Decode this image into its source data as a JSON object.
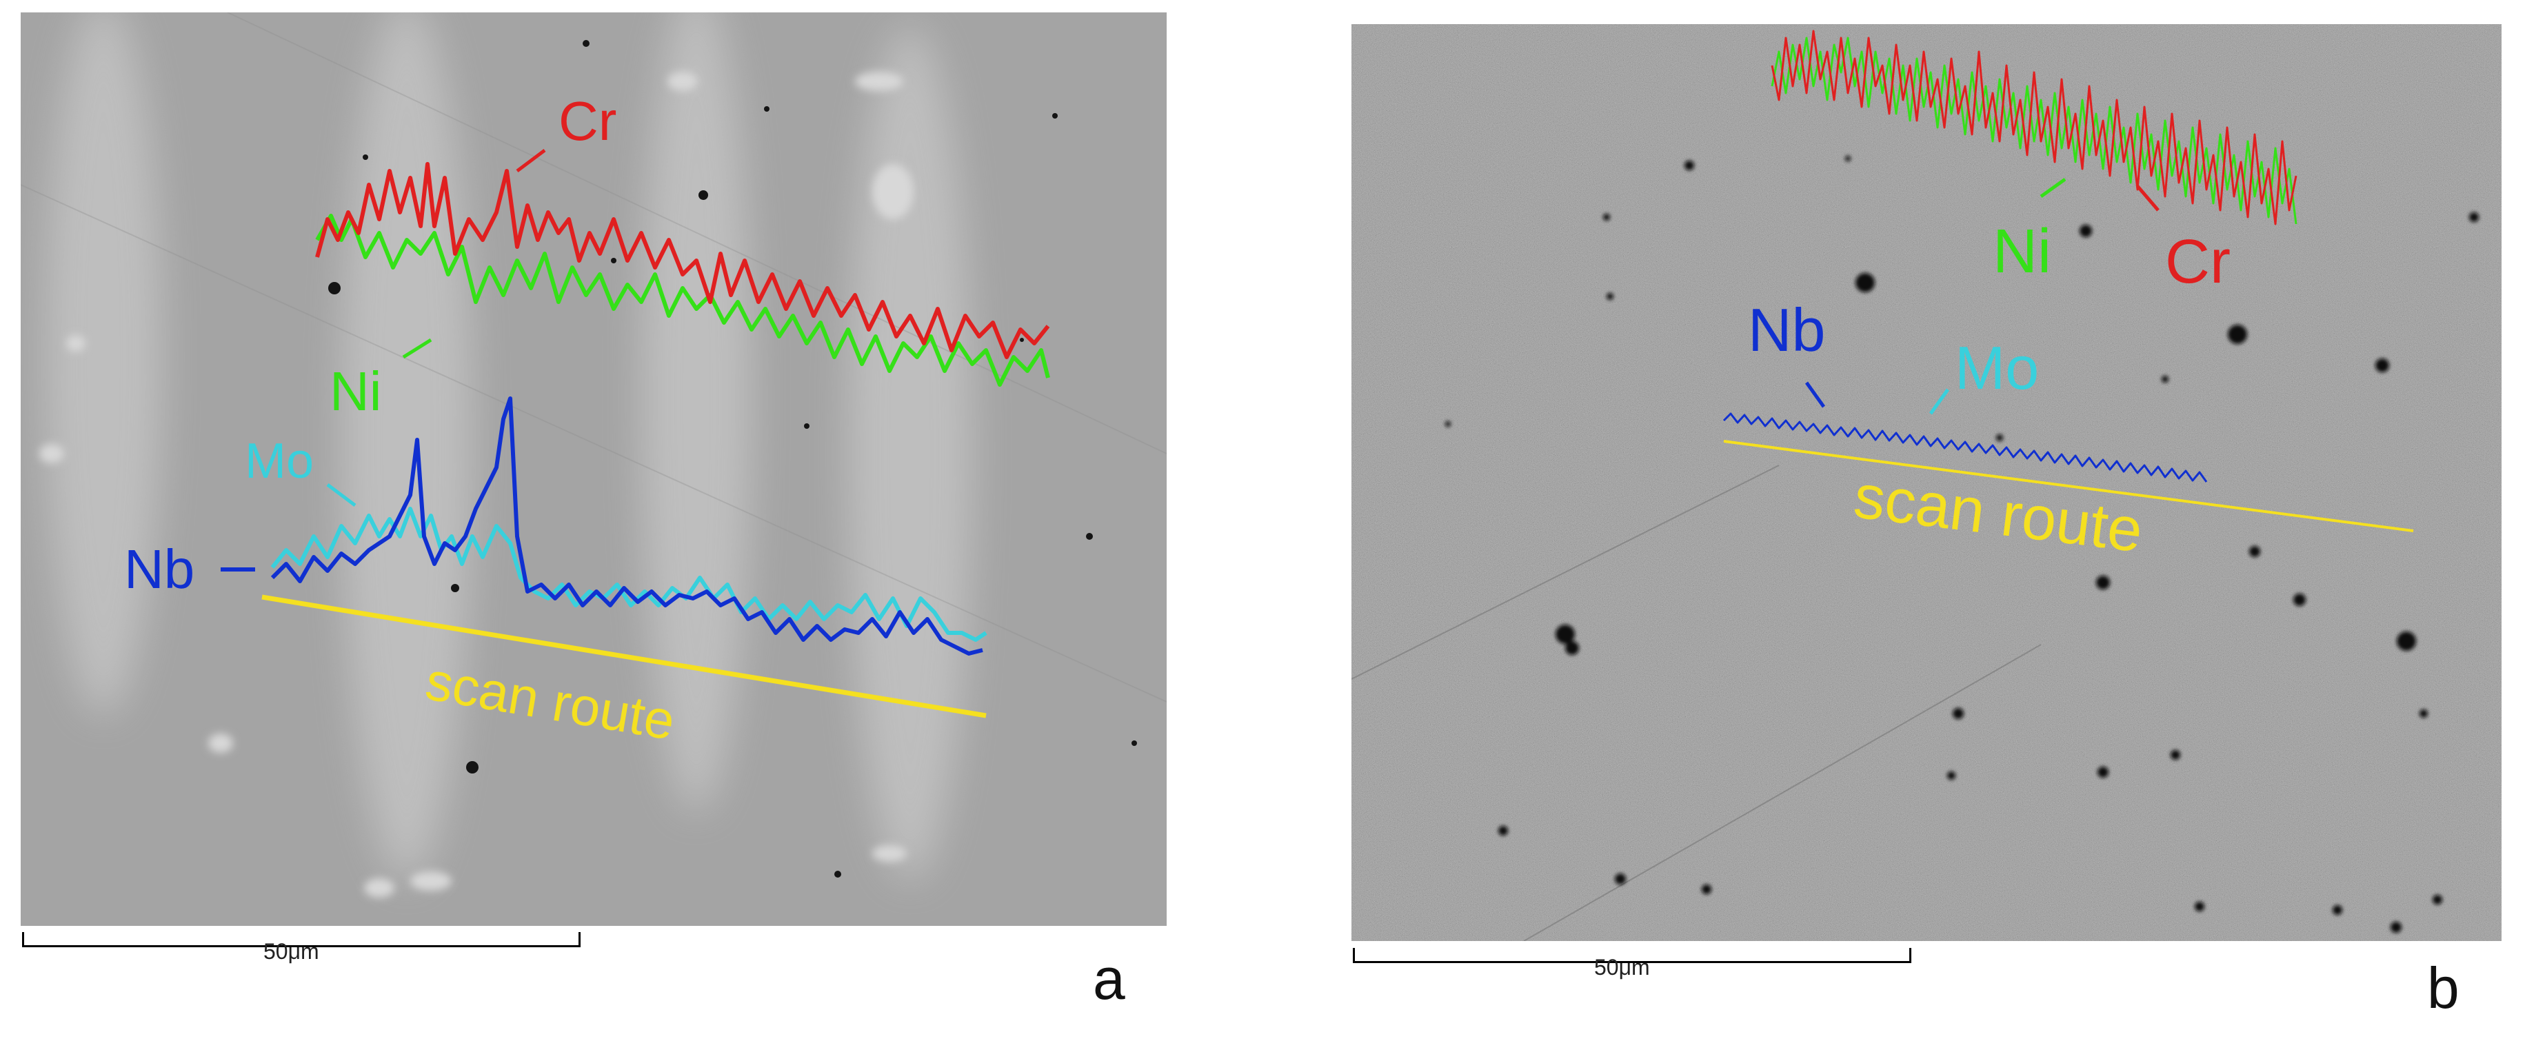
{
  "panels": [
    {
      "letter": "a",
      "labels": {
        "cr": "Cr",
        "ni": "Ni",
        "mo": "Mo",
        "nb": "Nb",
        "scan_route": "scan route"
      },
      "scale_bar": "50μm"
    },
    {
      "letter": "b",
      "labels": {
        "nb": "Nb",
        "mo": "Mo",
        "ni": "Ni",
        "cr": "Cr",
        "scan_route": "scan route"
      },
      "scale_bar": "50μm"
    }
  ],
  "colors": {
    "cr": "#e02020",
    "ni": "#35e018",
    "mo": "#39d0dc",
    "nb": "#1030d0",
    "scan_route": "#f5e020"
  }
}
